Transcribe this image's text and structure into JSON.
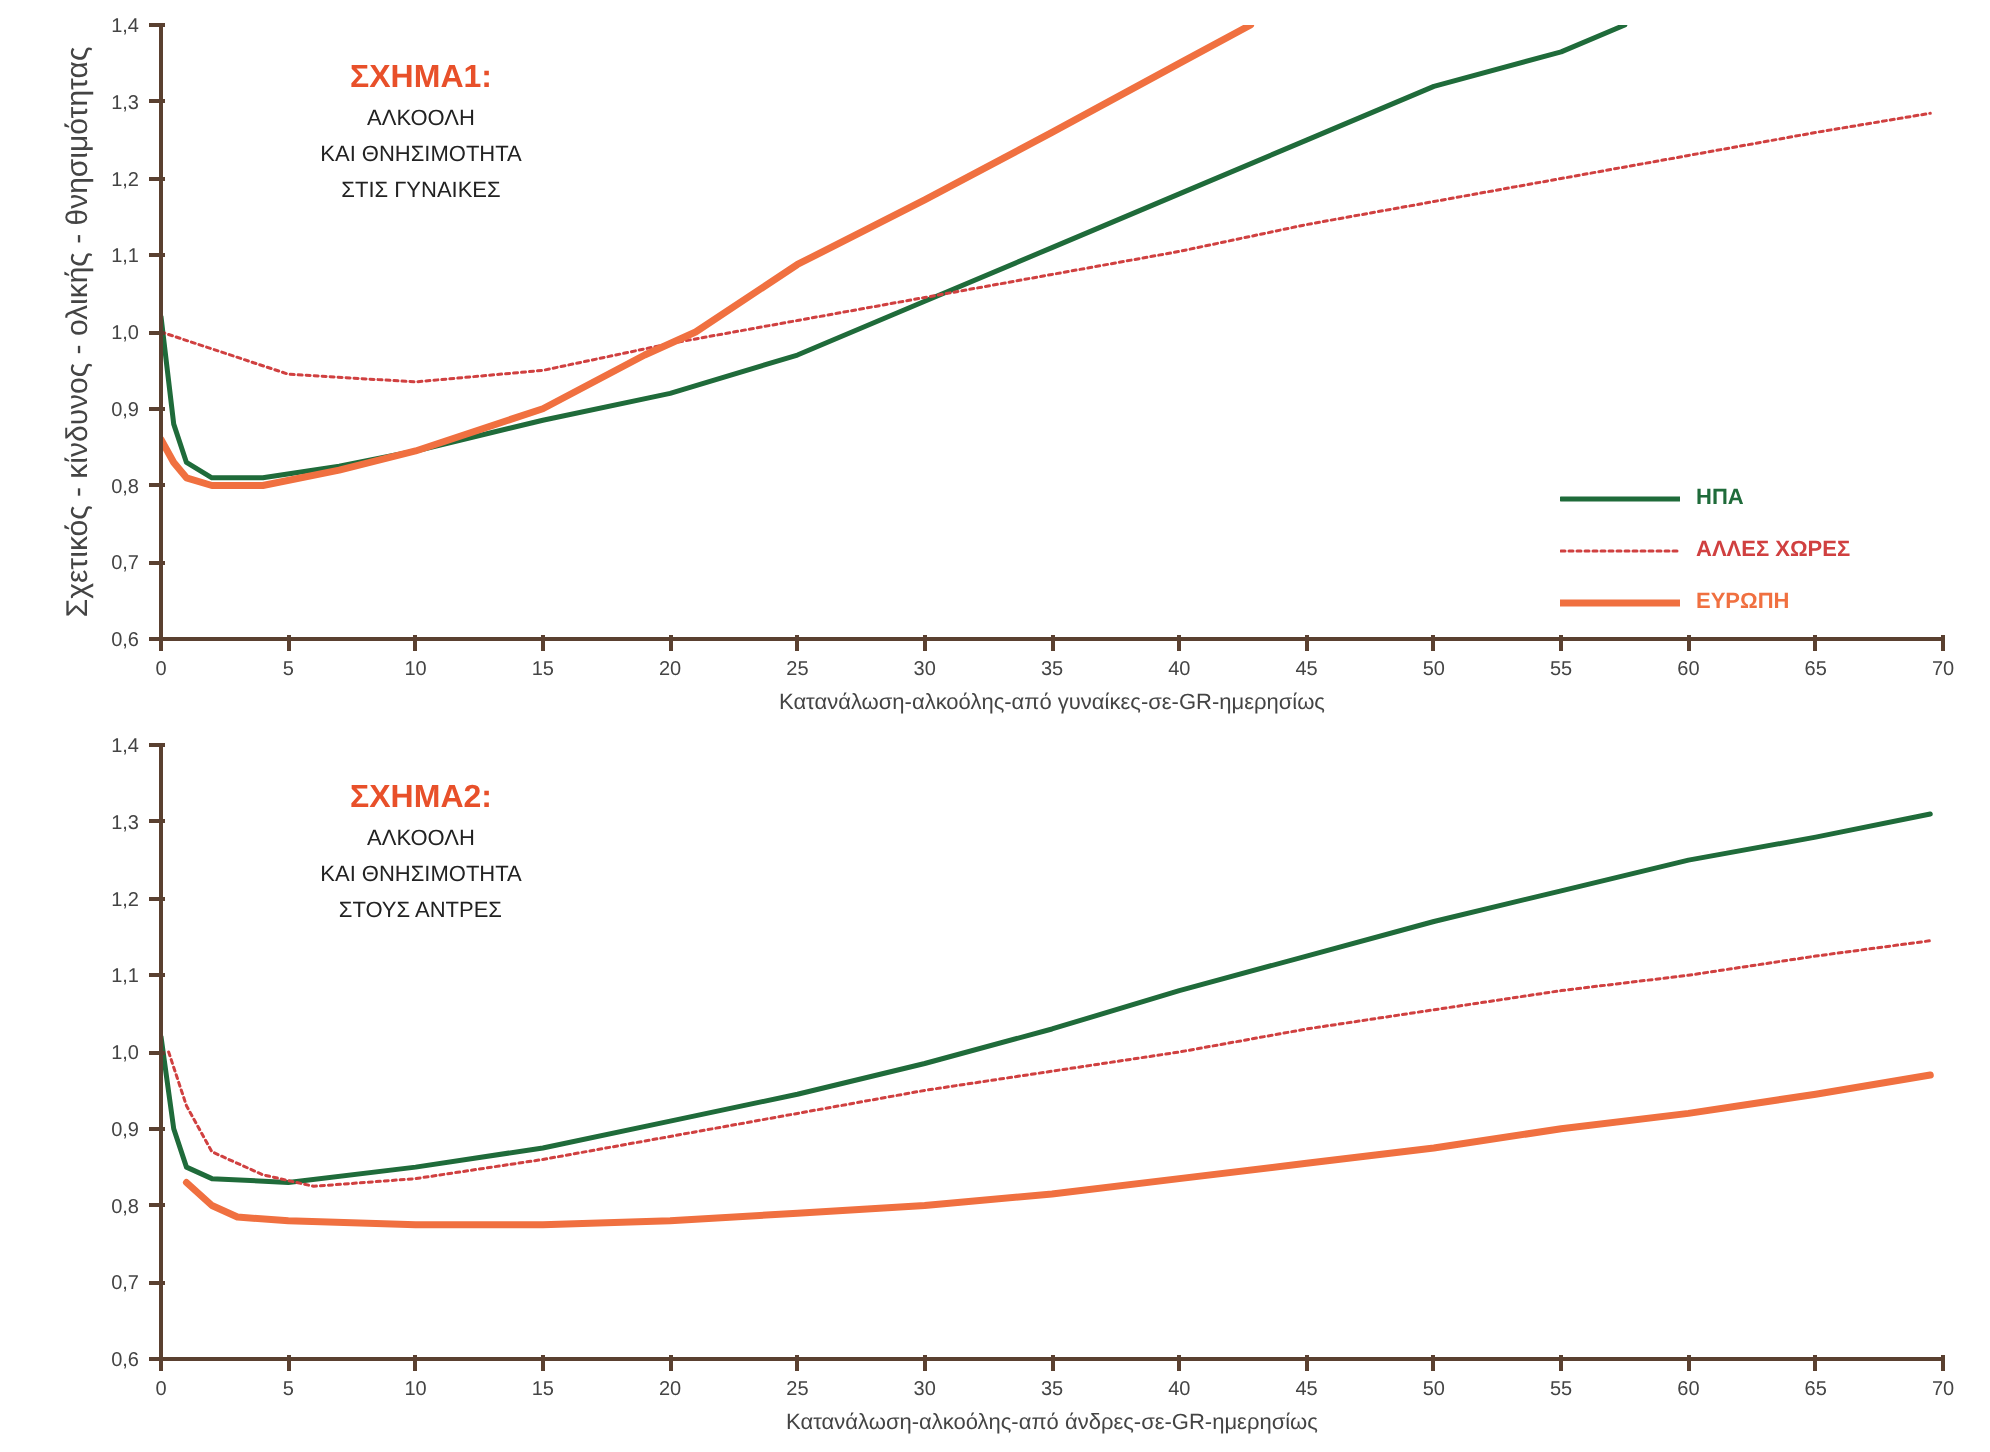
{
  "chart_data": [
    {
      "type": "line",
      "title": "ΣΧΗΜΑ1:",
      "subtitle": "ΑΛΚΟΟΛΗ\nΚΑΙ ΘΝΗΣΙΜΟΤΗΤΑ\nΣΤΙΣ ΓΥΝΑΙΚΕΣ",
      "xlabel": "Κατανάλωση-αλκοόλης-από γυναίκες-σε-GR-ημερησίως",
      "ylabel": "Σχετικός - κίνδυνος - ολικής - θνησιμότητας",
      "xlim": [
        0,
        70
      ],
      "ylim": [
        0.6,
        1.4
      ],
      "xticks": [
        0,
        5,
        10,
        15,
        20,
        25,
        30,
        35,
        40,
        45,
        50,
        55,
        60,
        65,
        70
      ],
      "yticks": [
        {
          "value": 0.6,
          "label": "0,6"
        },
        {
          "value": 0.7,
          "label": "0,7"
        },
        {
          "value": 0.8,
          "label": "0,8"
        },
        {
          "value": 0.9,
          "label": "0,9"
        },
        {
          "value": 1.0,
          "label": "1,0"
        },
        {
          "value": 1.1,
          "label": "1,1"
        },
        {
          "value": 1.2,
          "label": "1,2"
        },
        {
          "value": 1.3,
          "label": "1,3"
        },
        {
          "value": 1.4,
          "label": "1,4"
        }
      ],
      "grid": false,
      "legend": "bottom right",
      "marker": "none",
      "series": [
        {
          "name": "ΗΠΑ",
          "color": "#1f6b3a",
          "line_style": "solid",
          "x": [
            0,
            0.5,
            1,
            2,
            4,
            7,
            10,
            15,
            20,
            25,
            30,
            35,
            40,
            45,
            50,
            55,
            57.5
          ],
          "values": [
            1.02,
            0.88,
            0.83,
            0.81,
            0.81,
            0.825,
            0.845,
            0.885,
            0.92,
            0.97,
            1.04,
            1.11,
            1.18,
            1.25,
            1.32,
            1.365,
            1.4
          ]
        },
        {
          "name": "ΑΛΛΕΣ ΧΩΡΕΣ",
          "color": "#d04040",
          "line_style": "dotted",
          "x": [
            0,
            5,
            10,
            15,
            20,
            25,
            30,
            35,
            40,
            45,
            50,
            55,
            60,
            65,
            69.5
          ],
          "values": [
            1.0,
            0.945,
            0.935,
            0.95,
            0.985,
            1.015,
            1.045,
            1.075,
            1.105,
            1.14,
            1.17,
            1.2,
            1.23,
            1.26,
            1.285
          ]
        },
        {
          "name": "ΕΥΡΩΠΗ",
          "color": "#f07040",
          "line_style": "solid",
          "x": [
            0,
            0.5,
            1,
            2,
            4,
            7,
            10,
            15,
            19,
            21,
            25,
            30,
            35,
            40,
            42.8
          ],
          "values": [
            0.86,
            0.83,
            0.81,
            0.8,
            0.8,
            0.82,
            0.845,
            0.9,
            0.97,
            1.0,
            1.088,
            1.172,
            1.26,
            1.35,
            1.4
          ]
        }
      ]
    },
    {
      "type": "line",
      "title": "ΣΧΗΜΑ2:",
      "subtitle": "ΑΛΚΟΟΛΗ\nΚΑΙ ΘΝΗΣΙΜΟΤΗΤΑ\nΣΤΟΥΣ ΑΝΤΡΕΣ",
      "xlabel": "Κατανάλωση-αλκοόλης-από άνδρες-σε-GR-ημερησίως",
      "xlim": [
        0,
        70
      ],
      "ylim": [
        0.6,
        1.4
      ],
      "xticks": [
        0,
        5,
        10,
        15,
        20,
        25,
        30,
        35,
        40,
        45,
        50,
        55,
        60,
        65,
        70
      ],
      "yticks": [
        {
          "value": 0.6,
          "label": "0,6"
        },
        {
          "value": 0.7,
          "label": "0,7"
        },
        {
          "value": 0.8,
          "label": "0,8"
        },
        {
          "value": 0.9,
          "label": "0,9"
        },
        {
          "value": 1.0,
          "label": "1,0"
        },
        {
          "value": 1.1,
          "label": "1,1"
        },
        {
          "value": 1.2,
          "label": "1,2"
        },
        {
          "value": 1.3,
          "label": "1,3"
        },
        {
          "value": 1.4,
          "label": "1,4"
        }
      ],
      "grid": false,
      "marker": "none",
      "series": [
        {
          "color": "#1f6b3a",
          "line_style": "solid",
          "x": [
            0,
            0.5,
            1,
            2,
            5,
            10,
            15,
            20,
            25,
            30,
            35,
            40,
            45,
            50,
            55,
            60,
            65,
            69.5
          ],
          "values": [
            1.02,
            0.9,
            0.85,
            0.835,
            0.83,
            0.85,
            0.875,
            0.91,
            0.945,
            0.985,
            1.03,
            1.08,
            1.125,
            1.17,
            1.21,
            1.25,
            1.28,
            1.31
          ]
        },
        {
          "color": "#d04040",
          "line_style": "dotted",
          "x": [
            0.3,
            1,
            2,
            4,
            6,
            10,
            15,
            20,
            25,
            30,
            35,
            40,
            45,
            50,
            55,
            60,
            65,
            69.5
          ],
          "values": [
            1.0,
            0.93,
            0.87,
            0.84,
            0.825,
            0.835,
            0.86,
            0.89,
            0.92,
            0.95,
            0.975,
            1.0,
            1.03,
            1.055,
            1.08,
            1.1,
            1.125,
            1.145
          ]
        },
        {
          "color": "#f07040",
          "line_style": "solid",
          "x": [
            1,
            2,
            3,
            5,
            10,
            15,
            20,
            25,
            30,
            35,
            40,
            45,
            50,
            55,
            60,
            65,
            69.5
          ],
          "values": [
            0.83,
            0.8,
            0.785,
            0.78,
            0.775,
            0.775,
            0.78,
            0.79,
            0.8,
            0.815,
            0.835,
            0.855,
            0.875,
            0.9,
            0.92,
            0.945,
            0.97
          ]
        }
      ]
    }
  ]
}
